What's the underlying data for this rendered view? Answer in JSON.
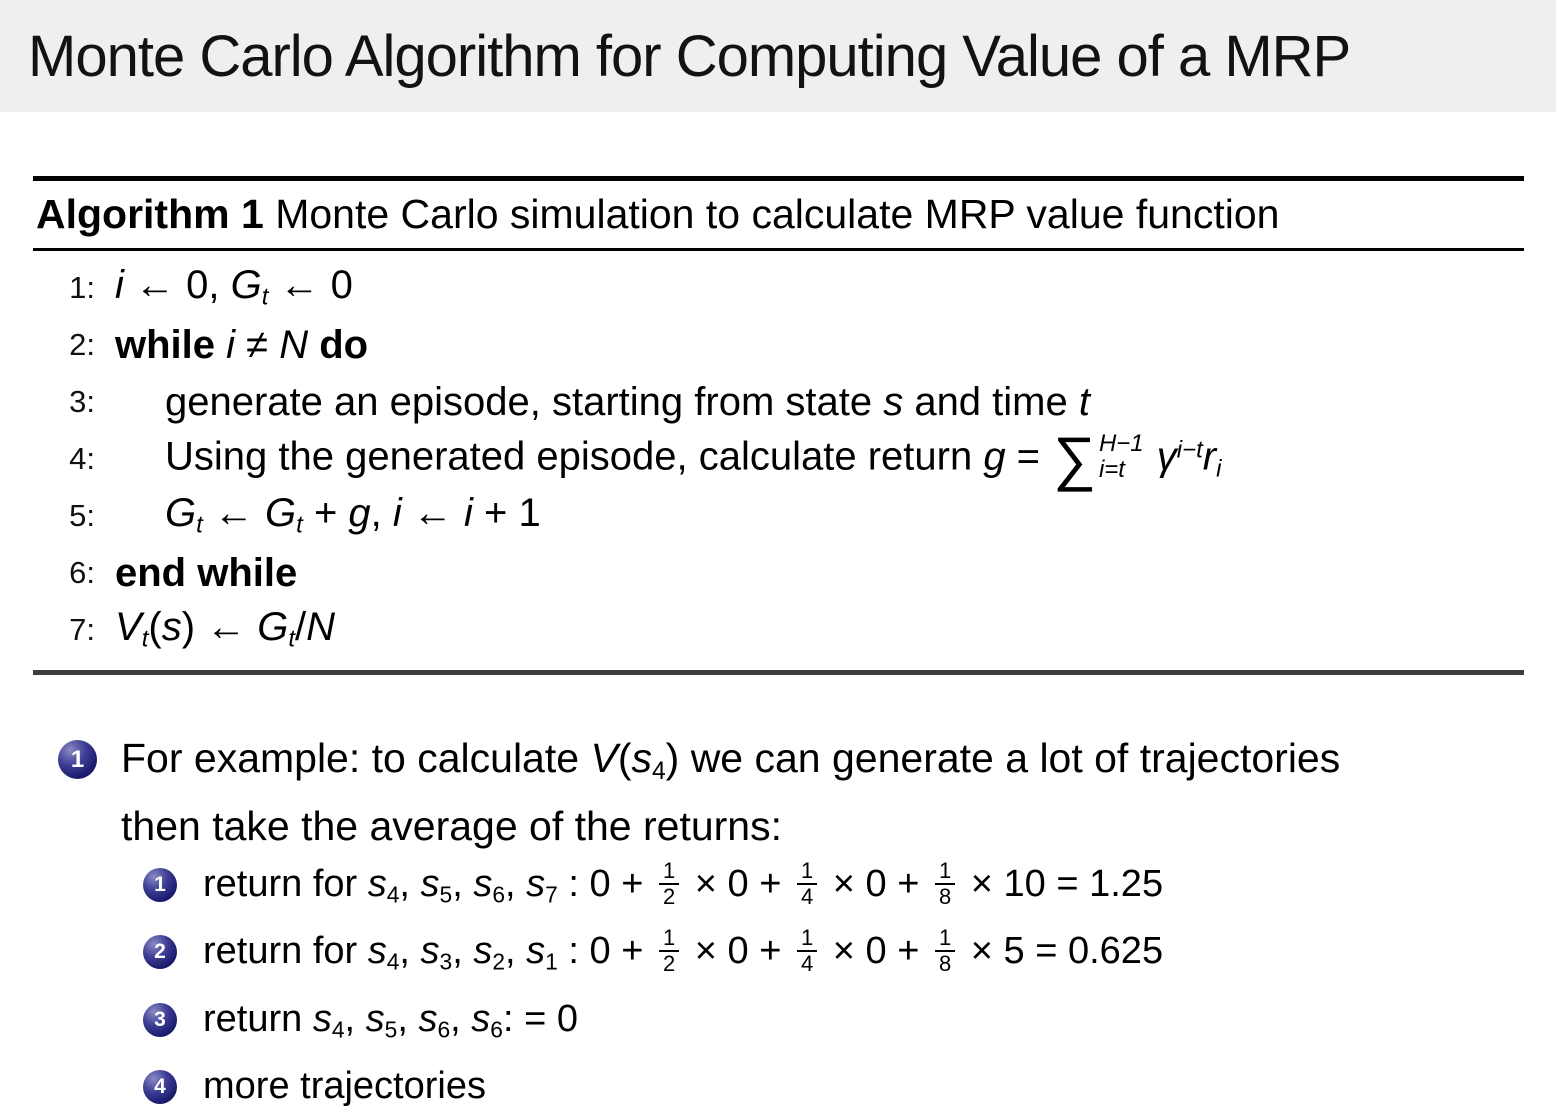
{
  "title": "Monte Carlo Algorithm for Computing Value of a MRP",
  "colors": {
    "banner_bg": "#efefef",
    "text": "#000000",
    "ball_navy": "#23237c",
    "rule_black": "#000000",
    "rule_bottom_gray": "#3d3d3d"
  },
  "algorithm": {
    "header_tokens": [
      {
        "c": "tk-bf",
        "s": "Algorithm 1"
      },
      {
        "s": " Monte Carlo simulation to calculate MRP value function"
      }
    ],
    "lines": [
      {
        "num": "1:",
        "indent": 0,
        "tokens": [
          {
            "c": "tk-it",
            "s": "i"
          },
          {
            "s": " ← 0, "
          },
          {
            "c": "tk-it",
            "s": "G"
          },
          {
            "c": "tk-it tk-sub",
            "s": "t"
          },
          {
            "s": " ← 0"
          }
        ]
      },
      {
        "num": "2:",
        "indent": 0,
        "tokens": [
          {
            "c": "tk-bf",
            "s": "while "
          },
          {
            "c": "tk-it",
            "s": "i"
          },
          {
            "s": " ≠ "
          },
          {
            "c": "tk-it",
            "s": "N"
          },
          {
            "c": "tk-bf",
            "s": " do"
          }
        ]
      },
      {
        "num": "3:",
        "indent": 1,
        "tokens": [
          {
            "s": "generate an episode, starting from state "
          },
          {
            "c": "tk-it",
            "s": "s"
          },
          {
            "s": " and time "
          },
          {
            "c": "tk-it",
            "s": "t"
          }
        ]
      },
      {
        "num": "4:",
        "indent": 1,
        "tokens": [
          {
            "s": "Using the generated episode, calculate return "
          },
          {
            "c": "tk-it",
            "s": "g"
          },
          {
            "s": " = "
          },
          {
            "sum": {
              "sup": "H−1",
              "sub": "i=t"
            }
          },
          {
            "s": " "
          },
          {
            "c": "tk-it",
            "s": "γ"
          },
          {
            "c": "tk-it tk-sup",
            "s": "i−t"
          },
          {
            "c": "tk-it",
            "s": "r"
          },
          {
            "c": "tk-it tk-sub",
            "s": "i"
          }
        ]
      },
      {
        "num": "5:",
        "indent": 1,
        "tokens": [
          {
            "c": "tk-it",
            "s": "G"
          },
          {
            "c": "tk-it tk-sub",
            "s": "t"
          },
          {
            "s": " ← "
          },
          {
            "c": "tk-it",
            "s": "G"
          },
          {
            "c": "tk-it tk-sub",
            "s": "t"
          },
          {
            "s": " + "
          },
          {
            "c": "tk-it",
            "s": "g"
          },
          {
            "s": ", "
          },
          {
            "c": "tk-it",
            "s": "i"
          },
          {
            "s": " ← "
          },
          {
            "c": "tk-it",
            "s": "i"
          },
          {
            "s": " + 1"
          }
        ]
      },
      {
        "num": "6:",
        "indent": 0,
        "tokens": [
          {
            "c": "tk-bf",
            "s": "end while"
          }
        ]
      },
      {
        "num": "7:",
        "indent": 0,
        "tokens": [
          {
            "c": "tk-it",
            "s": "V"
          },
          {
            "c": "tk-it tk-sub",
            "s": "t"
          },
          {
            "s": "("
          },
          {
            "c": "tk-it",
            "s": "s"
          },
          {
            "s": ") ← "
          },
          {
            "c": "tk-it",
            "s": "G"
          },
          {
            "c": "tk-it tk-sub",
            "s": "t"
          },
          {
            "s": "/"
          },
          {
            "c": "tk-it",
            "s": "N"
          }
        ]
      }
    ]
  },
  "bullets": {
    "items": [
      {
        "level": 1,
        "marker": "1",
        "lines": [
          [
            {
              "s": "For example: to calculate "
            },
            {
              "c": "tk-it",
              "s": "V"
            },
            {
              "s": "("
            },
            {
              "c": "tk-it",
              "s": "s"
            },
            {
              "c": "tk-sub",
              "s": "4"
            },
            {
              "s": ") we can generate a lot of trajectories"
            }
          ],
          [
            {
              "s": "then take the average of the returns:"
            }
          ]
        ]
      },
      {
        "level": 2,
        "marker": "1",
        "lines": [
          [
            {
              "s": "return for "
            },
            {
              "c": "tk-it",
              "s": "s"
            },
            {
              "c": "tk-sub",
              "s": "4"
            },
            {
              "s": ", "
            },
            {
              "c": "tk-it",
              "s": "s"
            },
            {
              "c": "tk-sub",
              "s": "5"
            },
            {
              "s": ", "
            },
            {
              "c": "tk-it",
              "s": "s"
            },
            {
              "c": "tk-sub",
              "s": "6"
            },
            {
              "s": ", "
            },
            {
              "c": "tk-it",
              "s": "s"
            },
            {
              "c": "tk-sub",
              "s": "7"
            },
            {
              "s": " : 0 + "
            },
            {
              "frac": {
                "n": "1",
                "d": "2"
              }
            },
            {
              "s": " × 0 + "
            },
            {
              "frac": {
                "n": "1",
                "d": "4"
              }
            },
            {
              "s": " × 0 + "
            },
            {
              "frac": {
                "n": "1",
                "d": "8"
              }
            },
            {
              "s": " × 10 = 1.25"
            }
          ]
        ]
      },
      {
        "level": 2,
        "marker": "2",
        "lines": [
          [
            {
              "s": "return for "
            },
            {
              "c": "tk-it",
              "s": "s"
            },
            {
              "c": "tk-sub",
              "s": "4"
            },
            {
              "s": ", "
            },
            {
              "c": "tk-it",
              "s": "s"
            },
            {
              "c": "tk-sub",
              "s": "3"
            },
            {
              "s": ", "
            },
            {
              "c": "tk-it",
              "s": "s"
            },
            {
              "c": "tk-sub",
              "s": "2"
            },
            {
              "s": ", "
            },
            {
              "c": "tk-it",
              "s": "s"
            },
            {
              "c": "tk-sub",
              "s": "1"
            },
            {
              "s": " : 0 + "
            },
            {
              "frac": {
                "n": "1",
                "d": "2"
              }
            },
            {
              "s": " × 0 + "
            },
            {
              "frac": {
                "n": "1",
                "d": "4"
              }
            },
            {
              "s": " × 0 + "
            },
            {
              "frac": {
                "n": "1",
                "d": "8"
              }
            },
            {
              "s": " × 5 = 0.625"
            }
          ]
        ]
      },
      {
        "level": 2,
        "marker": "3",
        "lines": [
          [
            {
              "s": "return "
            },
            {
              "c": "tk-it",
              "s": "s"
            },
            {
              "c": "tk-sub",
              "s": "4"
            },
            {
              "s": ", "
            },
            {
              "c": "tk-it",
              "s": "s"
            },
            {
              "c": "tk-sub",
              "s": "5"
            },
            {
              "s": ", "
            },
            {
              "c": "tk-it",
              "s": "s"
            },
            {
              "c": "tk-sub",
              "s": "6"
            },
            {
              "s": ", "
            },
            {
              "c": "tk-it",
              "s": "s"
            },
            {
              "c": "tk-sub",
              "s": "6"
            },
            {
              "s": ": = 0"
            }
          ]
        ]
      },
      {
        "level": 2,
        "marker": "4",
        "lines": [
          [
            {
              "s": "more trajectories"
            }
          ]
        ]
      }
    ]
  }
}
